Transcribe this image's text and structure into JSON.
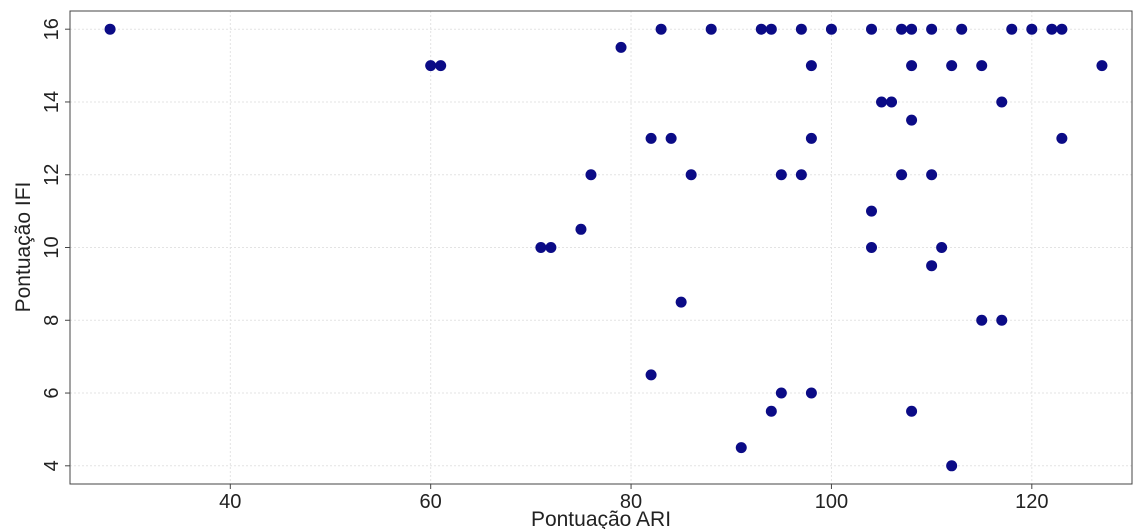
{
  "chart_data": {
    "type": "scatter",
    "xlabel": "Pontuação ARI",
    "ylabel": "Pontuação IFI",
    "xlim": [
      24,
      130
    ],
    "ylim": [
      3.5,
      16.5
    ],
    "xticks": [
      40,
      60,
      80,
      100,
      120
    ],
    "yticks": [
      4,
      6,
      8,
      10,
      12,
      14,
      16
    ],
    "grid": true,
    "point_color": "#0b0b86",
    "points": [
      {
        "x": 28,
        "y": 16
      },
      {
        "x": 60,
        "y": 15
      },
      {
        "x": 61,
        "y": 15
      },
      {
        "x": 71,
        "y": 10
      },
      {
        "x": 72,
        "y": 10
      },
      {
        "x": 75,
        "y": 10.5
      },
      {
        "x": 76,
        "y": 12
      },
      {
        "x": 79,
        "y": 15.5
      },
      {
        "x": 82,
        "y": 13
      },
      {
        "x": 82,
        "y": 6.5
      },
      {
        "x": 83,
        "y": 16
      },
      {
        "x": 84,
        "y": 13
      },
      {
        "x": 85,
        "y": 8.5
      },
      {
        "x": 86,
        "y": 12
      },
      {
        "x": 88,
        "y": 16
      },
      {
        "x": 91,
        "y": 4.5
      },
      {
        "x": 93,
        "y": 16
      },
      {
        "x": 94,
        "y": 16
      },
      {
        "x": 94,
        "y": 5.5
      },
      {
        "x": 95,
        "y": 12
      },
      {
        "x": 95,
        "y": 6
      },
      {
        "x": 97,
        "y": 16
      },
      {
        "x": 97,
        "y": 12
      },
      {
        "x": 98,
        "y": 15
      },
      {
        "x": 98,
        "y": 13
      },
      {
        "x": 98,
        "y": 6
      },
      {
        "x": 100,
        "y": 16
      },
      {
        "x": 104,
        "y": 16
      },
      {
        "x": 104,
        "y": 11
      },
      {
        "x": 104,
        "y": 10
      },
      {
        "x": 105,
        "y": 14
      },
      {
        "x": 106,
        "y": 14
      },
      {
        "x": 107,
        "y": 16
      },
      {
        "x": 107,
        "y": 12
      },
      {
        "x": 108,
        "y": 16
      },
      {
        "x": 108,
        "y": 15
      },
      {
        "x": 108,
        "y": 13.5
      },
      {
        "x": 108,
        "y": 5.5
      },
      {
        "x": 110,
        "y": 16
      },
      {
        "x": 110,
        "y": 12
      },
      {
        "x": 110,
        "y": 9.5
      },
      {
        "x": 111,
        "y": 10
      },
      {
        "x": 112,
        "y": 15
      },
      {
        "x": 112,
        "y": 4
      },
      {
        "x": 113,
        "y": 16
      },
      {
        "x": 115,
        "y": 15
      },
      {
        "x": 115,
        "y": 8
      },
      {
        "x": 117,
        "y": 14
      },
      {
        "x": 117,
        "y": 8
      },
      {
        "x": 118,
        "y": 16
      },
      {
        "x": 120,
        "y": 16
      },
      {
        "x": 122,
        "y": 16
      },
      {
        "x": 123,
        "y": 16
      },
      {
        "x": 123,
        "y": 13
      },
      {
        "x": 127,
        "y": 15
      }
    ]
  }
}
